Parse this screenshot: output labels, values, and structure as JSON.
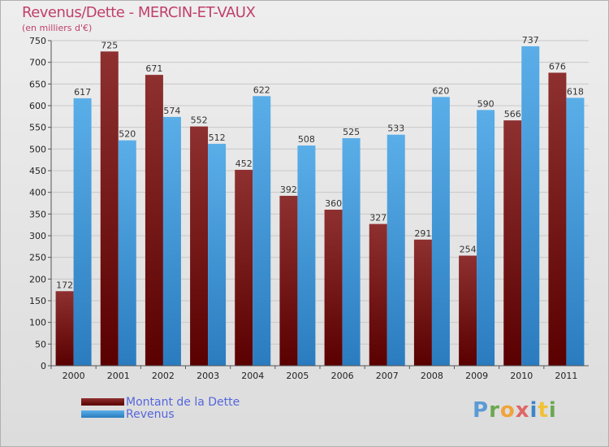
{
  "title": "Revenus/Dette - MERCIN-ET-VAUX",
  "subtitle": "(en milliers d'€)",
  "logo": "Proxiti",
  "chart_data": {
    "type": "bar",
    "title": "Revenus/Dette - MERCIN-ET-VAUX",
    "ylabel": "(en milliers d'€)",
    "ylim": [
      0,
      750
    ],
    "yticks": [
      0,
      50,
      100,
      150,
      200,
      250,
      300,
      350,
      400,
      450,
      500,
      550,
      600,
      650,
      700,
      750
    ],
    "categories": [
      "2000",
      "2001",
      "2002",
      "2003",
      "2004",
      "2005",
      "2006",
      "2007",
      "2008",
      "2009",
      "2010",
      "2011"
    ],
    "series": [
      {
        "name": "Montant de la Dette",
        "color": "#7a1a1a",
        "values": [
          172,
          725,
          671,
          552,
          452,
          392,
          360,
          327,
          291,
          254,
          566,
          676
        ]
      },
      {
        "name": "Revenus",
        "color": "#3d9ae0",
        "values": [
          617,
          520,
          574,
          512,
          622,
          508,
          525,
          533,
          620,
          590,
          737,
          618
        ]
      }
    ],
    "legend": "bottom-left"
  }
}
